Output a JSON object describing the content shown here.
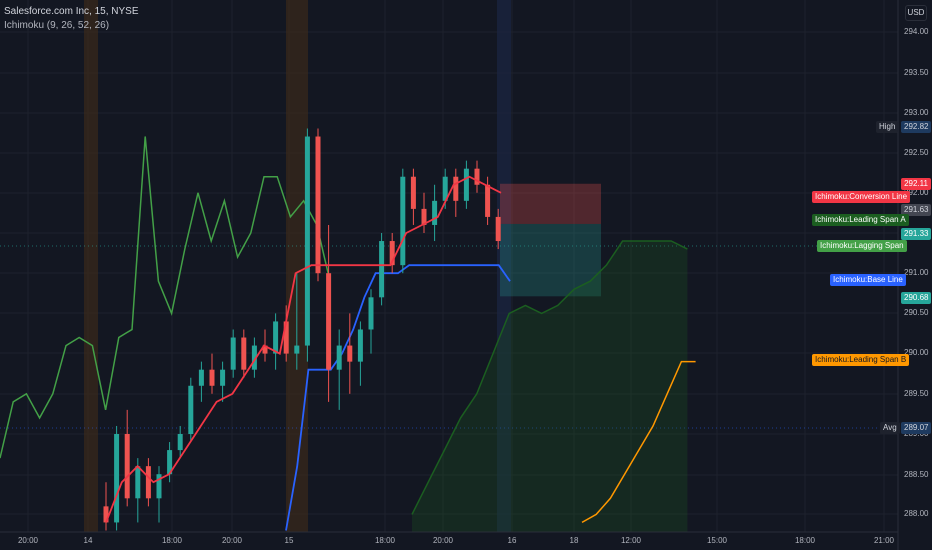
{
  "legend": {
    "symbol": "Salesforce.com Inc, 15, NYSE",
    "indicator": "Ichimoku (9, 26, 52, 26)"
  },
  "currency": "USD",
  "y_ticks": [
    "294.00",
    "293.50",
    "293.00",
    "292.50",
    "292.00",
    "291.50",
    "291.00",
    "290.50",
    "290.00",
    "289.50",
    "289.00",
    "288.50",
    "288.00"
  ],
  "x_ticks": [
    "20:00",
    "14",
    "18:00",
    "20:00",
    "15",
    "18:00",
    "20:00",
    "16",
    "18",
    "12:00",
    "15:00",
    "18:00",
    "21:00"
  ],
  "price_tags": {
    "high_label": "High",
    "high_value": "292.82",
    "conversion_value": "292.11",
    "current_value": "291.63",
    "leading_a_value": "291.33",
    "green_value": "290.68",
    "avg_label": "Avg",
    "avg_value": "289.07"
  },
  "line_labels": {
    "conversion": "Ichimoku:Conversion Line",
    "leading_a": "Ichimoku:Leading Span A",
    "lagging": "Ichimoku:Lagging Span",
    "base": "Ichimoku:Base Line",
    "leading_b": "Ichimoku:Leading Span B"
  },
  "colors": {
    "background": "#131722",
    "bull": "#26a69a",
    "bear": "#ef5350",
    "conversion": "#f23645",
    "base": "#2962ff",
    "lagging": "#43a047",
    "leading_a": "#1b5e20",
    "leading_b": "#ff9800"
  },
  "chart_data": {
    "type": "candlestick",
    "title": "Salesforce.com Inc, 15, NYSE",
    "ylim": [
      287.9,
      294.3
    ],
    "candles": [
      {
        "o": 288.1,
        "h": 288.4,
        "l": 287.8,
        "c": 287.9
      },
      {
        "o": 287.9,
        "h": 289.1,
        "l": 287.8,
        "c": 289.0
      },
      {
        "o": 289.0,
        "h": 289.3,
        "l": 288.1,
        "c": 288.2
      },
      {
        "o": 288.2,
        "h": 288.7,
        "l": 287.9,
        "c": 288.6
      },
      {
        "o": 288.6,
        "h": 288.7,
        "l": 288.1,
        "c": 288.2
      },
      {
        "o": 288.2,
        "h": 288.6,
        "l": 287.9,
        "c": 288.5
      },
      {
        "o": 288.5,
        "h": 288.9,
        "l": 288.4,
        "c": 288.8
      },
      {
        "o": 288.8,
        "h": 289.1,
        "l": 288.7,
        "c": 289.0
      },
      {
        "o": 289.0,
        "h": 289.7,
        "l": 288.9,
        "c": 289.6
      },
      {
        "o": 289.6,
        "h": 289.9,
        "l": 289.4,
        "c": 289.8
      },
      {
        "o": 289.8,
        "h": 290.0,
        "l": 289.5,
        "c": 289.6
      },
      {
        "o": 289.6,
        "h": 289.9,
        "l": 289.4,
        "c": 289.8
      },
      {
        "o": 289.8,
        "h": 290.3,
        "l": 289.7,
        "c": 290.2
      },
      {
        "o": 290.2,
        "h": 290.3,
        "l": 289.7,
        "c": 289.8
      },
      {
        "o": 289.8,
        "h": 290.2,
        "l": 289.7,
        "c": 290.1
      },
      {
        "o": 290.1,
        "h": 290.3,
        "l": 289.9,
        "c": 290.0
      },
      {
        "o": 290.0,
        "h": 290.5,
        "l": 289.8,
        "c": 290.4
      },
      {
        "o": 290.4,
        "h": 290.6,
        "l": 289.9,
        "c": 290.0
      },
      {
        "o": 290.0,
        "h": 291.0,
        "l": 289.8,
        "c": 290.1
      },
      {
        "o": 290.1,
        "h": 292.8,
        "l": 289.9,
        "c": 292.7
      },
      {
        "o": 292.7,
        "h": 292.8,
        "l": 290.9,
        "c": 291.0
      },
      {
        "o": 291.0,
        "h": 291.6,
        "l": 289.4,
        "c": 289.8
      },
      {
        "o": 289.8,
        "h": 290.3,
        "l": 289.3,
        "c": 290.1
      },
      {
        "o": 290.1,
        "h": 290.5,
        "l": 289.5,
        "c": 289.9
      },
      {
        "o": 289.9,
        "h": 290.4,
        "l": 289.6,
        "c": 290.3
      },
      {
        "o": 290.3,
        "h": 290.8,
        "l": 290.0,
        "c": 290.7
      },
      {
        "o": 290.7,
        "h": 291.5,
        "l": 290.6,
        "c": 291.4
      },
      {
        "o": 291.4,
        "h": 291.5,
        "l": 291.0,
        "c": 291.1
      },
      {
        "o": 291.1,
        "h": 292.3,
        "l": 291.0,
        "c": 292.2
      },
      {
        "o": 292.2,
        "h": 292.3,
        "l": 291.6,
        "c": 291.8
      },
      {
        "o": 291.8,
        "h": 292.0,
        "l": 291.5,
        "c": 291.6
      },
      {
        "o": 291.6,
        "h": 292.1,
        "l": 291.4,
        "c": 291.9
      },
      {
        "o": 291.9,
        "h": 292.3,
        "l": 291.8,
        "c": 292.2
      },
      {
        "o": 292.2,
        "h": 292.3,
        "l": 291.7,
        "c": 291.9
      },
      {
        "o": 291.9,
        "h": 292.4,
        "l": 291.8,
        "c": 292.3
      },
      {
        "o": 292.3,
        "h": 292.4,
        "l": 292.0,
        "c": 292.1
      },
      {
        "o": 292.1,
        "h": 292.2,
        "l": 291.6,
        "c": 291.7
      },
      {
        "o": 291.7,
        "h": 291.8,
        "l": 291.3,
        "c": 291.4
      }
    ],
    "conversion_line": [
      287.9,
      288.4,
      288.6,
      288.4,
      288.5,
      288.8,
      289.1,
      289.4,
      289.5,
      289.8,
      290.1,
      290.0,
      291.0,
      291.1,
      291.1,
      291.1,
      291.1,
      291.1,
      291.1,
      291.5,
      291.6,
      291.7,
      292.1,
      292.2,
      292.1,
      292.0
    ],
    "base_line": [
      287.8,
      288.6,
      289.8,
      289.8,
      289.8,
      290.0,
      290.3,
      290.7,
      291.0,
      291.0,
      291.0,
      291.1,
      291.1,
      291.1,
      291.1,
      291.1,
      291.1,
      291.1,
      291.1,
      291.1,
      290.9
    ],
    "lagging_span": [
      288.7,
      289.4,
      289.5,
      289.2,
      289.5,
      290.1,
      290.2,
      290.1,
      289.3,
      290.2,
      290.3,
      292.7,
      290.9,
      290.5,
      291.3,
      292.0,
      291.4,
      291.9,
      291.2,
      291.5,
      292.2,
      292.2,
      291.7,
      291.9,
      291.6,
      290.9
    ],
    "leading_span_a": [
      288.0,
      288.4,
      288.8,
      289.2,
      289.5,
      290.0,
      290.5,
      290.6,
      290.5,
      290.6,
      290.8,
      290.9,
      291.1,
      291.4,
      291.4,
      291.4,
      291.4,
      291.3
    ],
    "leading_span_b": [
      287.9,
      288.0,
      288.2,
      288.5,
      288.8,
      289.1,
      289.5,
      289.9,
      289.9
    ],
    "position_box": {
      "stop": 292.1,
      "entry": 291.6,
      "target": 290.7
    }
  }
}
